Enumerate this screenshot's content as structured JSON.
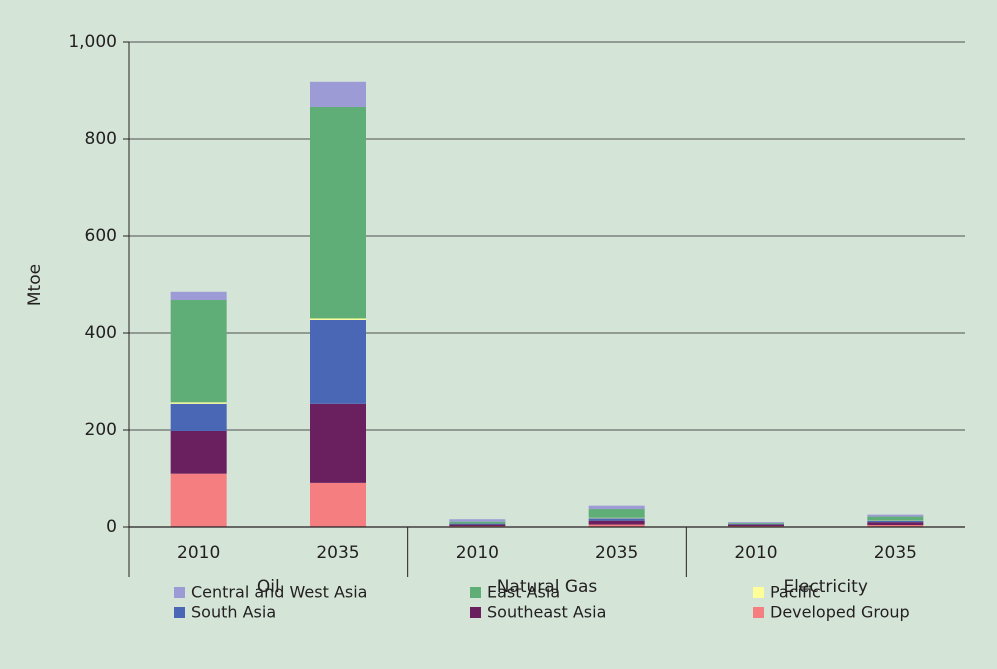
{
  "chart_data": {
    "type": "stacked_bar",
    "y_label": "Mtoe",
    "categories": [
      "2010",
      "2035",
      "2010",
      "2035",
      "2010",
      "2035"
    ],
    "groups": [
      "Oil",
      "Natural Gas",
      "Electricity"
    ],
    "ylim": [
      0,
      1000
    ],
    "yticks": [
      0,
      200,
      400,
      600,
      800,
      {
        "value": 1000,
        "label": "1,000"
      }
    ],
    "grid": true,
    "legend": "bottom",
    "series": [
      {
        "name": "Developed Group",
        "color": "#f47e80",
        "values": [
          110,
          91,
          2,
          5,
          2,
          4
        ]
      },
      {
        "name": "Southeast Asia",
        "color": "#6a1f5f",
        "values": [
          88,
          163,
          3,
          8,
          3,
          6
        ]
      },
      {
        "name": "South Asia",
        "color": "#4a67b5",
        "values": [
          56,
          173,
          2,
          5,
          1,
          3
        ]
      },
      {
        "name": "Pacific",
        "color": "#ffff99",
        "values": [
          3,
          3,
          0,
          1,
          0,
          0.5
        ]
      },
      {
        "name": "East Asia",
        "color": "#5fae78",
        "values": [
          211,
          436,
          4,
          18,
          2,
          8
        ]
      },
      {
        "name": "Central and West Asia",
        "color": "#9d9bd6",
        "values": [
          17,
          52,
          5,
          7,
          2,
          4
        ]
      }
    ]
  }
}
